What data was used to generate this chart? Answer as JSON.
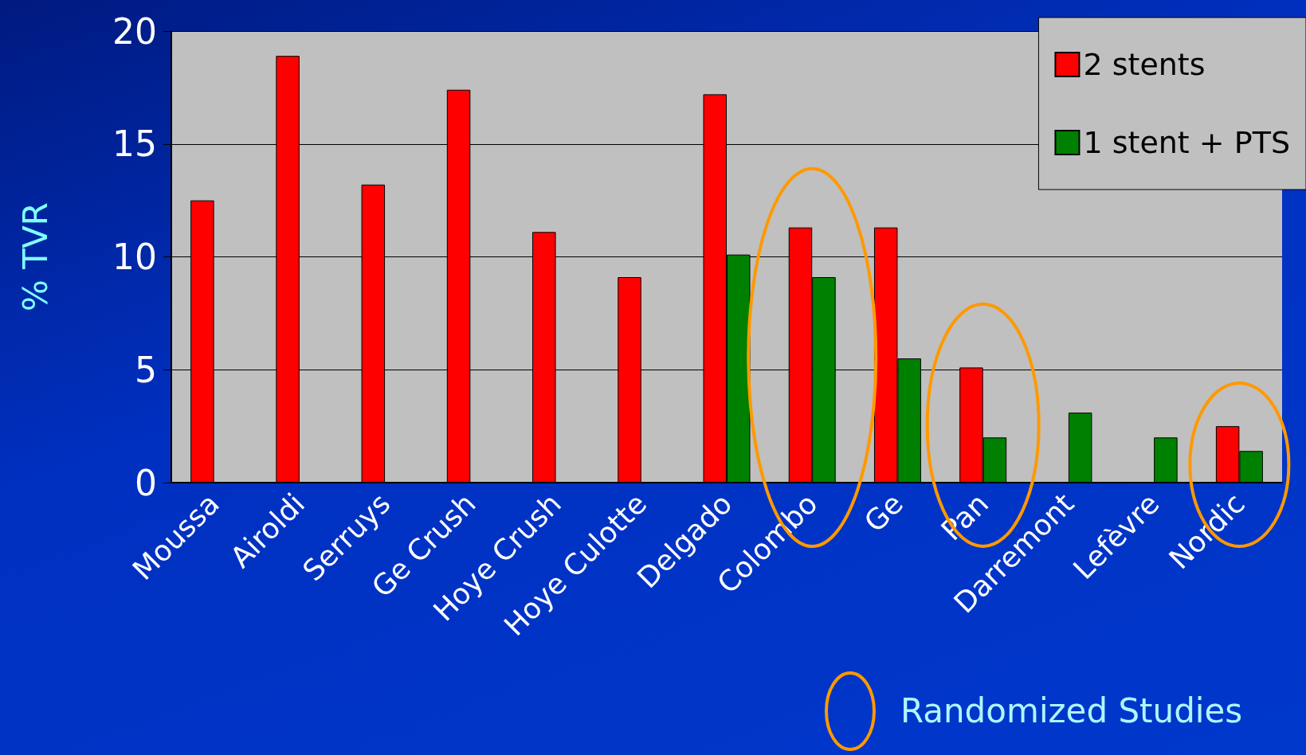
{
  "chart_data": {
    "type": "bar",
    "ylabel": "% TVR",
    "categories": [
      "Moussa",
      "Airoldi",
      "Serruys",
      "Ge Crush",
      "Hoye Crush",
      "Hoye Culotte",
      "Delgado",
      "Colombo",
      "Ge",
      "Pan",
      "Darremont",
      "Lefèvre",
      "Nordic"
    ],
    "series": [
      {
        "name": "2 stents",
        "color": "#ff0000",
        "values": [
          12.5,
          18.9,
          13.2,
          17.4,
          11.1,
          9.1,
          17.2,
          11.3,
          11.3,
          5.1,
          null,
          null,
          2.5
        ]
      },
      {
        "name": "1 stent + PTS",
        "color": "#008000",
        "values": [
          null,
          null,
          null,
          null,
          null,
          null,
          10.1,
          9.1,
          5.5,
          2.0,
          3.1,
          2.0,
          1.4
        ]
      }
    ],
    "ylim": [
      0,
      20
    ],
    "yticks": [
      0,
      5,
      10,
      15,
      20
    ],
    "grid": "y",
    "legend": "top right",
    "annotations": [
      "Randomized Studies"
    ]
  }
}
